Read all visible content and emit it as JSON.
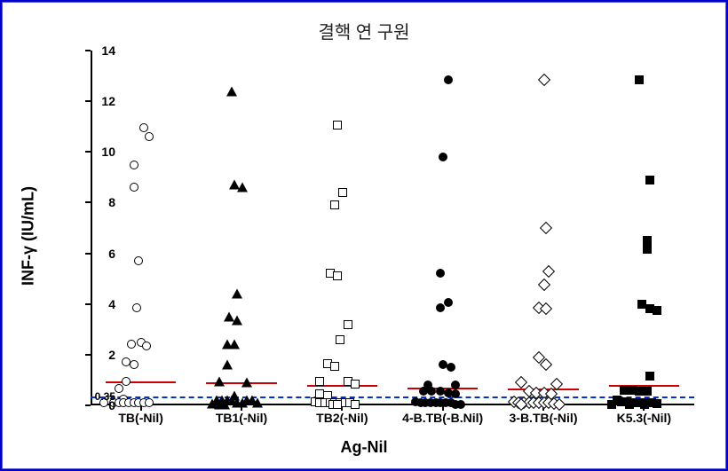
{
  "chart": {
    "type": "scatter-strip",
    "title": "결핵 연 구원",
    "y_label_html": "INF-γ (IU/mL)",
    "x_label": "Ag-Nil",
    "background": "#ffffff",
    "frame_border_color": "#0000cc",
    "ylim": [
      0,
      14
    ],
    "ytick_step": 2,
    "yticks": [
      0,
      2,
      4,
      6,
      8,
      10,
      12,
      14
    ],
    "threshold": {
      "value": 0.35,
      "label": "0.35",
      "color": "#0033cc",
      "dash": [
        4,
        4
      ]
    },
    "categories": [
      "TB(-Nil)",
      "TB1(-Nil)",
      "TB2(-Nil)",
      "4-B.TB(-B.Nil)",
      "3-B.TB(-Nil)",
      "K5.3(-Nil)"
    ],
    "mean_line_color": "#cc0000",
    "means": [
      0.95,
      0.9,
      0.8,
      0.7,
      0.65,
      0.8
    ],
    "marker_size": 10,
    "series": [
      {
        "name": "TB(-Nil)",
        "marker": "circle-open",
        "points": [
          {
            "x": 0.5,
            "y": 10.95
          },
          {
            "x": 0.6,
            "y": 10.6
          },
          {
            "x": 0.3,
            "y": 9.5
          },
          {
            "x": 0.3,
            "y": 8.6
          },
          {
            "x": 0.4,
            "y": 5.7
          },
          {
            "x": 0.35,
            "y": 3.85
          },
          {
            "x": 0.25,
            "y": 2.4
          },
          {
            "x": 0.45,
            "y": 2.5
          },
          {
            "x": 0.55,
            "y": 2.35
          },
          {
            "x": 0.15,
            "y": 1.7
          },
          {
            "x": 0.3,
            "y": 1.6
          },
          {
            "x": 0.15,
            "y": 0.95
          },
          {
            "x": 0.0,
            "y": 0.65
          },
          {
            "x": 0.1,
            "y": 0.25
          },
          {
            "x": -0.2,
            "y": 0.2
          },
          {
            "x": -0.3,
            "y": 0.1
          },
          {
            "x": -0.1,
            "y": 0.1
          },
          {
            "x": 0.0,
            "y": 0.1
          },
          {
            "x": 0.1,
            "y": 0.1
          },
          {
            "x": 0.2,
            "y": 0.1
          },
          {
            "x": 0.3,
            "y": 0.1
          },
          {
            "x": 0.4,
            "y": 0.1
          },
          {
            "x": 0.5,
            "y": 0.1
          },
          {
            "x": 0.6,
            "y": 0.12
          }
        ]
      },
      {
        "name": "TB1(-Nil)",
        "marker": "triangle-filled",
        "points": [
          {
            "x": 0.25,
            "y": 12.4
          },
          {
            "x": 0.3,
            "y": 8.7
          },
          {
            "x": 0.45,
            "y": 8.6
          },
          {
            "x": 0.35,
            "y": 4.4
          },
          {
            "x": 0.2,
            "y": 3.5
          },
          {
            "x": 0.35,
            "y": 3.35
          },
          {
            "x": 0.15,
            "y": 2.4
          },
          {
            "x": 0.3,
            "y": 2.4
          },
          {
            "x": 0.15,
            "y": 1.6
          },
          {
            "x": 0.0,
            "y": 0.95
          },
          {
            "x": 0.55,
            "y": 0.9
          },
          {
            "x": 0.3,
            "y": 0.4
          },
          {
            "x": -0.05,
            "y": 0.2
          },
          {
            "x": 0.05,
            "y": 0.2
          },
          {
            "x": 0.15,
            "y": 0.2
          },
          {
            "x": 0.25,
            "y": 0.2
          },
          {
            "x": 0.35,
            "y": 0.12
          },
          {
            "x": 0.45,
            "y": 0.12
          },
          {
            "x": 0.55,
            "y": 0.2
          },
          {
            "x": 0.65,
            "y": 0.2
          },
          {
            "x": 0.75,
            "y": 0.12
          },
          {
            "x": -0.15,
            "y": 0.08
          },
          {
            "x": 0.0,
            "y": 0.05
          },
          {
            "x": 0.1,
            "y": 0.05
          }
        ]
      },
      {
        "name": "TB2(-Nil)",
        "marker": "square-open",
        "points": [
          {
            "x": 0.35,
            "y": 11.05
          },
          {
            "x": 0.45,
            "y": 8.4
          },
          {
            "x": 0.3,
            "y": 7.9
          },
          {
            "x": 0.2,
            "y": 5.2
          },
          {
            "x": 0.35,
            "y": 5.1
          },
          {
            "x": 0.55,
            "y": 3.2
          },
          {
            "x": 0.4,
            "y": 2.6
          },
          {
            "x": 0.15,
            "y": 1.65
          },
          {
            "x": 0.3,
            "y": 1.55
          },
          {
            "x": 0.0,
            "y": 0.95
          },
          {
            "x": 0.55,
            "y": 0.95
          },
          {
            "x": 0.7,
            "y": 0.85
          },
          {
            "x": 0.0,
            "y": 0.45
          },
          {
            "x": 0.15,
            "y": 0.4
          },
          {
            "x": -0.1,
            "y": 0.15
          },
          {
            "x": 0.0,
            "y": 0.12
          },
          {
            "x": 0.1,
            "y": 0.12
          },
          {
            "x": 0.2,
            "y": 0.12
          },
          {
            "x": 0.3,
            "y": 0.12
          },
          {
            "x": 0.4,
            "y": 0.1
          },
          {
            "x": 0.5,
            "y": 0.1
          },
          {
            "x": 0.6,
            "y": 0.1
          },
          {
            "x": 0.7,
            "y": 0.05
          },
          {
            "x": 0.25,
            "y": 0.05
          },
          {
            "x": 0.35,
            "y": 0.05
          }
        ]
      },
      {
        "name": "4-B.TB(-B.Nil)",
        "marker": "circle-filled",
        "points": [
          {
            "x": 0.55,
            "y": 12.85
          },
          {
            "x": 0.45,
            "y": 9.8
          },
          {
            "x": 0.4,
            "y": 5.2
          },
          {
            "x": 0.55,
            "y": 4.05
          },
          {
            "x": 0.4,
            "y": 3.85
          },
          {
            "x": 0.45,
            "y": 1.6
          },
          {
            "x": 0.6,
            "y": 1.5
          },
          {
            "x": 0.15,
            "y": 0.8
          },
          {
            "x": 0.7,
            "y": 0.8
          },
          {
            "x": 0.05,
            "y": 0.55
          },
          {
            "x": 0.22,
            "y": 0.55
          },
          {
            "x": 0.4,
            "y": 0.55
          },
          {
            "x": 0.55,
            "y": 0.5
          },
          {
            "x": 0.7,
            "y": 0.45
          },
          {
            "x": -0.1,
            "y": 0.15
          },
          {
            "x": 0.0,
            "y": 0.12
          },
          {
            "x": 0.1,
            "y": 0.12
          },
          {
            "x": 0.2,
            "y": 0.1
          },
          {
            "x": 0.3,
            "y": 0.1
          },
          {
            "x": 0.4,
            "y": 0.1
          },
          {
            "x": 0.5,
            "y": 0.1
          },
          {
            "x": 0.6,
            "y": 0.1
          },
          {
            "x": 0.7,
            "y": 0.05
          },
          {
            "x": 0.8,
            "y": 0.05
          }
        ]
      },
      {
        "name": "3-B.TB(-Nil)",
        "marker": "diamond-open",
        "points": [
          {
            "x": 0.45,
            "y": 12.85
          },
          {
            "x": 0.5,
            "y": 7.0
          },
          {
            "x": 0.55,
            "y": 5.3
          },
          {
            "x": 0.45,
            "y": 4.75
          },
          {
            "x": 0.35,
            "y": 3.85
          },
          {
            "x": 0.5,
            "y": 3.8
          },
          {
            "x": 0.35,
            "y": 1.9
          },
          {
            "x": 0.5,
            "y": 1.6
          },
          {
            "x": 0.0,
            "y": 0.9
          },
          {
            "x": 0.7,
            "y": 0.85
          },
          {
            "x": 0.15,
            "y": 0.55
          },
          {
            "x": 0.3,
            "y": 0.5
          },
          {
            "x": 0.45,
            "y": 0.5
          },
          {
            "x": 0.6,
            "y": 0.45
          },
          {
            "x": -0.15,
            "y": 0.15
          },
          {
            "x": -0.05,
            "y": 0.12
          },
          {
            "x": 0.05,
            "y": 0.12
          },
          {
            "x": 0.15,
            "y": 0.1
          },
          {
            "x": 0.25,
            "y": 0.1
          },
          {
            "x": 0.35,
            "y": 0.1
          },
          {
            "x": 0.45,
            "y": 0.1
          },
          {
            "x": 0.55,
            "y": 0.1
          },
          {
            "x": 0.65,
            "y": 0.08
          },
          {
            "x": 0.75,
            "y": 0.05
          },
          {
            "x": 0.0,
            "y": 0.05
          }
        ]
      },
      {
        "name": "K5.3(-Nil)",
        "marker": "square-filled",
        "points": [
          {
            "x": 0.35,
            "y": 12.85
          },
          {
            "x": 0.55,
            "y": 8.9
          },
          {
            "x": 0.5,
            "y": 6.5
          },
          {
            "x": 0.5,
            "y": 6.15
          },
          {
            "x": 0.4,
            "y": 4.0
          },
          {
            "x": 0.55,
            "y": 3.8
          },
          {
            "x": 0.7,
            "y": 3.75
          },
          {
            "x": 0.55,
            "y": 1.15
          },
          {
            "x": 0.05,
            "y": 0.58
          },
          {
            "x": 0.2,
            "y": 0.6
          },
          {
            "x": 0.35,
            "y": 0.55
          },
          {
            "x": 0.5,
            "y": 0.55
          },
          {
            "x": -0.1,
            "y": 0.2
          },
          {
            "x": 0.0,
            "y": 0.15
          },
          {
            "x": 0.1,
            "y": 0.15
          },
          {
            "x": 0.2,
            "y": 0.12
          },
          {
            "x": 0.3,
            "y": 0.12
          },
          {
            "x": 0.4,
            "y": 0.1
          },
          {
            "x": 0.5,
            "y": 0.1
          },
          {
            "x": 0.6,
            "y": 0.1
          },
          {
            "x": 0.7,
            "y": 0.08
          },
          {
            "x": -0.2,
            "y": 0.05
          },
          {
            "x": 0.15,
            "y": 0.05
          },
          {
            "x": 0.45,
            "y": 0.05
          }
        ]
      }
    ]
  }
}
